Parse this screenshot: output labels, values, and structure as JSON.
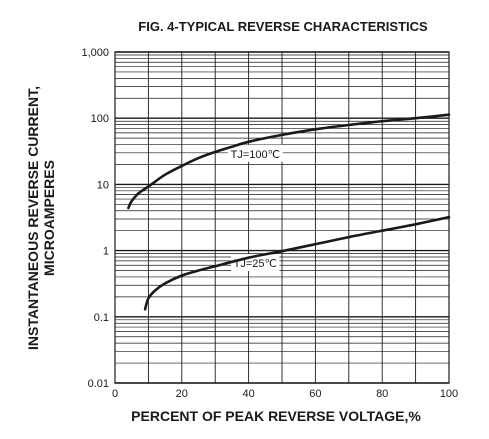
{
  "chart_data": {
    "type": "line",
    "title": "FIG. 4-TYPICAL REVERSE CHARACTERISTICS",
    "xlabel": "PERCENT OF PEAK REVERSE VOLTAGE,%",
    "ylabel_lines": [
      "INSTANTANEOUS REVERSE CURRENT,",
      "MICROAMPERES"
    ],
    "xlim": [
      0,
      100
    ],
    "ylim": [
      0.01,
      1000
    ],
    "yscale": "log",
    "grid": true,
    "x_ticks": [
      0,
      20,
      40,
      60,
      80,
      100
    ],
    "x_tick_labels": [
      "0",
      "20",
      "40",
      "60",
      "80",
      "100"
    ],
    "y_ticks": [
      0.01,
      0.1,
      1,
      10,
      100,
      1000
    ],
    "y_tick_labels": [
      "0.01",
      "0.1",
      "1",
      "10",
      "100",
      "1,000"
    ],
    "series": [
      {
        "name": "TJ=100℃",
        "points": [
          [
            4,
            4.4
          ],
          [
            5,
            5.6
          ],
          [
            7,
            7.3
          ],
          [
            10,
            9.3
          ],
          [
            15,
            14
          ],
          [
            20,
            19
          ],
          [
            25,
            25
          ],
          [
            30,
            31
          ],
          [
            35,
            37
          ],
          [
            40,
            44
          ],
          [
            50,
            56
          ],
          [
            60,
            68
          ],
          [
            70,
            79
          ],
          [
            80,
            90
          ],
          [
            90,
            100
          ],
          [
            100,
            113
          ]
        ]
      },
      {
        "name": "TJ=25℃",
        "points": [
          [
            9,
            0.13
          ],
          [
            10,
            0.19
          ],
          [
            12,
            0.25
          ],
          [
            15,
            0.32
          ],
          [
            20,
            0.42
          ],
          [
            25,
            0.5
          ],
          [
            30,
            0.58
          ],
          [
            40,
            0.78
          ],
          [
            50,
            0.98
          ],
          [
            60,
            1.25
          ],
          [
            70,
            1.6
          ],
          [
            80,
            2.0
          ],
          [
            90,
            2.5
          ],
          [
            100,
            3.2
          ]
        ]
      }
    ],
    "annotations": [
      {
        "text": "TJ=100℃",
        "x": 42,
        "y": 29
      },
      {
        "text": "TJ=25℃",
        "x": 42,
        "y": 0.65
      }
    ]
  }
}
